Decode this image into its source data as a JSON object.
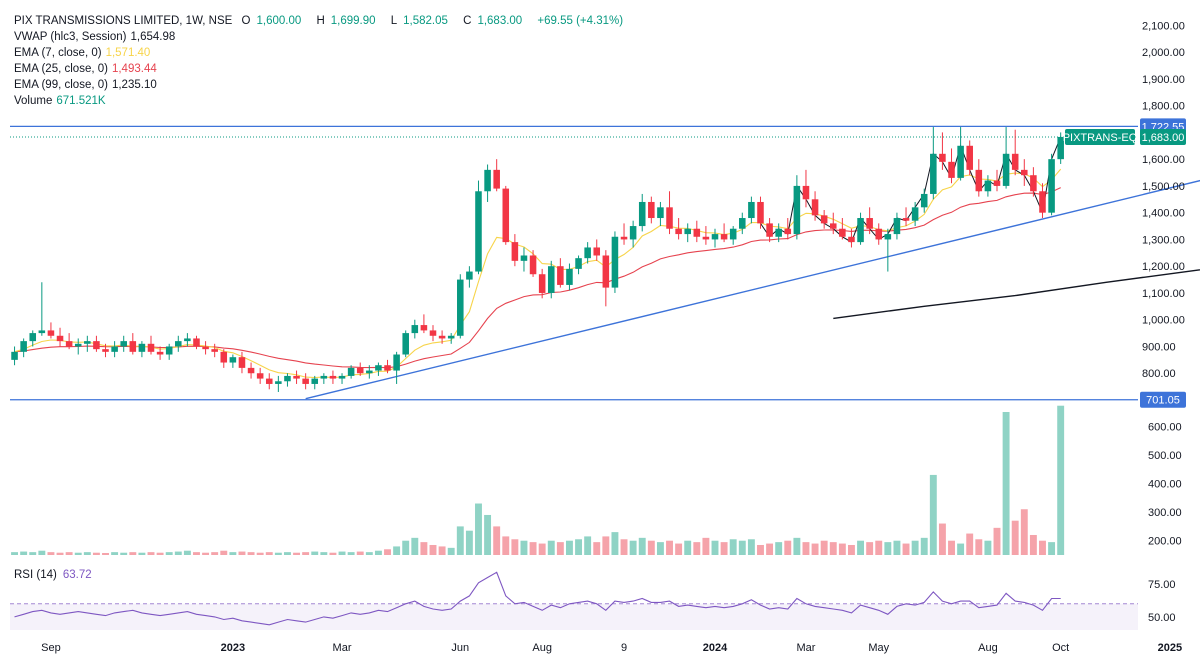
{
  "header": {
    "symbol": "PIX TRANSMISSIONS LIMITED, 1W, NSE",
    "open_label": "O",
    "open": "1,600.00",
    "high_label": "H",
    "high": "1,699.90",
    "low_label": "L",
    "low": "1,582.05",
    "close_label": "C",
    "close": "1,683.00",
    "change": "+69.55 (+4.31%)"
  },
  "indicators": [
    {
      "label": "VWAP (hlc3, Session)",
      "value": "1,654.98",
      "color": "#131722"
    },
    {
      "label": "EMA (7, close, 0)",
      "value": "1,571.40",
      "color": "#f7d44a"
    },
    {
      "label": "EMA (25, close, 0)",
      "value": "1,493.44",
      "color": "#e6434f"
    },
    {
      "label": "EMA (99, close, 0)",
      "value": "1,235.10",
      "color": "#131722"
    },
    {
      "label": "Volume",
      "value": "671.521K",
      "color": "#089981"
    }
  ],
  "rsi": {
    "label": "RSI (14)",
    "value": "63.72",
    "color": "#7e57c2"
  },
  "colors": {
    "up": "#089981",
    "down": "#f23645",
    "vol_up": "#8fd3c5",
    "vol_down": "#f5a3aa",
    "trend": "#3d73d9",
    "ema25": "#e6434f",
    "ema7": "#f7d44a",
    "rsi": "#7e57c2"
  },
  "chart_data": {
    "type": "candlestick",
    "interval": "1W",
    "price_axis": {
      "ticks": [
        2100,
        2000,
        1900,
        1800,
        1700,
        1600,
        1500,
        1400,
        1300,
        1200,
        1100,
        1000,
        900,
        800
      ],
      "tick_labels": [
        "2,100.00",
        "2,000.00",
        "1,900.00",
        "1,800.00",
        "1,700.00",
        "1,600.00",
        "1,500.00",
        "1,400.00",
        "1,300.00",
        "1,200.00",
        "1,100.00",
        "1,000.00",
        "900.00",
        "800.00"
      ],
      "range": [
        700,
        2120
      ]
    },
    "volume_axis": {
      "ticks": [
        600,
        500,
        400,
        300,
        200
      ],
      "tick_labels": [
        "600.00",
        "500.00",
        "400.00",
        "300.00",
        "200.00"
      ],
      "unit": "K"
    },
    "rsi_axis": {
      "ticks": [
        75,
        50
      ],
      "tick_labels": [
        "75.00",
        "50.00"
      ],
      "reference": 60
    },
    "time_axis": [
      "Sep",
      "2023",
      "Mar",
      "Jun",
      "Aug",
      "9",
      "2024",
      "Mar",
      "May",
      "Aug",
      "Oct",
      "2025"
    ],
    "badges": [
      {
        "text": "1,722.55",
        "value": 1722.55
      },
      {
        "text": "PIXTRANS-EQ",
        "value": 1683
      },
      {
        "text": "1,683.00",
        "value": 1683
      },
      {
        "text": "701.05",
        "value": 701.05
      }
    ],
    "horizontal_lines": [
      1722.55,
      701.05
    ],
    "trendline": {
      "from": {
        "week": 32,
        "price": 705
      },
      "to": {
        "week": 140,
        "price": 1600
      }
    },
    "ema99_tail": [
      {
        "week": 90,
        "price": 1005
      },
      {
        "week": 100,
        "price": 1050
      },
      {
        "week": 110,
        "price": 1090
      },
      {
        "week": 120,
        "price": 1140
      },
      {
        "week": 130,
        "price": 1185
      },
      {
        "week": 140,
        "price": 1235
      }
    ],
    "candles": [
      [
        850,
        900,
        830,
        880
      ],
      [
        880,
        930,
        860,
        920
      ],
      [
        920,
        960,
        900,
        950
      ],
      [
        950,
        1140,
        940,
        960
      ],
      [
        960,
        990,
        930,
        940
      ],
      [
        940,
        970,
        900,
        920
      ],
      [
        920,
        950,
        890,
        900
      ],
      [
        900,
        930,
        870,
        910
      ],
      [
        910,
        940,
        880,
        920
      ],
      [
        920,
        940,
        880,
        890
      ],
      [
        890,
        910,
        860,
        880
      ],
      [
        880,
        920,
        860,
        900
      ],
      [
        900,
        940,
        880,
        920
      ],
      [
        920,
        950,
        870,
        880
      ],
      [
        880,
        920,
        860,
        910
      ],
      [
        910,
        940,
        870,
        880
      ],
      [
        880,
        900,
        850,
        870
      ],
      [
        870,
        910,
        850,
        900
      ],
      [
        900,
        940,
        880,
        920
      ],
      [
        920,
        950,
        900,
        930
      ],
      [
        930,
        940,
        890,
        900
      ],
      [
        900,
        920,
        870,
        890
      ],
      [
        890,
        910,
        860,
        880
      ],
      [
        880,
        890,
        820,
        840
      ],
      [
        840,
        870,
        820,
        860
      ],
      [
        860,
        880,
        800,
        820
      ],
      [
        820,
        840,
        780,
        800
      ],
      [
        800,
        820,
        760,
        780
      ],
      [
        780,
        800,
        740,
        760
      ],
      [
        760,
        790,
        730,
        770
      ],
      [
        770,
        800,
        750,
        790
      ],
      [
        790,
        810,
        760,
        780
      ],
      [
        780,
        800,
        740,
        760
      ],
      [
        760,
        790,
        740,
        780
      ],
      [
        780,
        800,
        760,
        790
      ],
      [
        790,
        810,
        760,
        780
      ],
      [
        780,
        800,
        760,
        790
      ],
      [
        790,
        830,
        780,
        820
      ],
      [
        820,
        840,
        790,
        800
      ],
      [
        800,
        830,
        780,
        810
      ],
      [
        810,
        840,
        790,
        830
      ],
      [
        830,
        850,
        800,
        810
      ],
      [
        810,
        880,
        760,
        870
      ],
      [
        870,
        960,
        860,
        950
      ],
      [
        950,
        1000,
        930,
        980
      ],
      [
        980,
        1020,
        950,
        960
      ],
      [
        960,
        980,
        920,
        940
      ],
      [
        940,
        960,
        910,
        930
      ],
      [
        930,
        950,
        910,
        940
      ],
      [
        940,
        1170,
        930,
        1150
      ],
      [
        1150,
        1200,
        1120,
        1180
      ],
      [
        1180,
        1520,
        1170,
        1480
      ],
      [
        1480,
        1580,
        1440,
        1560
      ],
      [
        1560,
        1600,
        1480,
        1490
      ],
      [
        1490,
        1500,
        1280,
        1290
      ],
      [
        1290,
        1320,
        1200,
        1220
      ],
      [
        1220,
        1270,
        1180,
        1240
      ],
      [
        1240,
        1260,
        1160,
        1170
      ],
      [
        1170,
        1190,
        1080,
        1100
      ],
      [
        1100,
        1220,
        1080,
        1200
      ],
      [
        1200,
        1230,
        1120,
        1130
      ],
      [
        1130,
        1210,
        1110,
        1190
      ],
      [
        1190,
        1240,
        1170,
        1230
      ],
      [
        1230,
        1290,
        1210,
        1270
      ],
      [
        1270,
        1300,
        1220,
        1240
      ],
      [
        1240,
        1260,
        1050,
        1120
      ],
      [
        1120,
        1330,
        1100,
        1310
      ],
      [
        1310,
        1360,
        1280,
        1300
      ],
      [
        1300,
        1370,
        1270,
        1350
      ],
      [
        1350,
        1470,
        1330,
        1440
      ],
      [
        1440,
        1460,
        1360,
        1380
      ],
      [
        1380,
        1440,
        1350,
        1420
      ],
      [
        1420,
        1480,
        1320,
        1340
      ],
      [
        1340,
        1380,
        1300,
        1320
      ],
      [
        1320,
        1360,
        1290,
        1340
      ],
      [
        1340,
        1370,
        1290,
        1310
      ],
      [
        1310,
        1350,
        1280,
        1300
      ],
      [
        1300,
        1340,
        1270,
        1320
      ],
      [
        1320,
        1360,
        1290,
        1300
      ],
      [
        1300,
        1350,
        1280,
        1340
      ],
      [
        1340,
        1400,
        1320,
        1380
      ],
      [
        1380,
        1460,
        1360,
        1440
      ],
      [
        1440,
        1460,
        1340,
        1360
      ],
      [
        1360,
        1380,
        1290,
        1310
      ],
      [
        1310,
        1360,
        1290,
        1340
      ],
      [
        1340,
        1380,
        1300,
        1320
      ],
      [
        1320,
        1540,
        1300,
        1500
      ],
      [
        1500,
        1560,
        1420,
        1450
      ],
      [
        1450,
        1480,
        1370,
        1390
      ],
      [
        1390,
        1410,
        1340,
        1360
      ],
      [
        1360,
        1400,
        1320,
        1340
      ],
      [
        1340,
        1380,
        1300,
        1310
      ],
      [
        1310,
        1340,
        1270,
        1290
      ],
      [
        1290,
        1400,
        1280,
        1380
      ],
      [
        1380,
        1420,
        1320,
        1340
      ],
      [
        1340,
        1360,
        1280,
        1300
      ],
      [
        1300,
        1340,
        1180,
        1320
      ],
      [
        1320,
        1400,
        1300,
        1380
      ],
      [
        1380,
        1420,
        1350,
        1370
      ],
      [
        1370,
        1440,
        1350,
        1420
      ],
      [
        1420,
        1490,
        1400,
        1470
      ],
      [
        1470,
        1720,
        1450,
        1620
      ],
      [
        1620,
        1700,
        1560,
        1590
      ],
      [
        1590,
        1640,
        1510,
        1530
      ],
      [
        1530,
        1720,
        1520,
        1650
      ],
      [
        1650,
        1670,
        1540,
        1560
      ],
      [
        1560,
        1600,
        1460,
        1480
      ],
      [
        1480,
        1540,
        1460,
        1520
      ],
      [
        1520,
        1560,
        1480,
        1500
      ],
      [
        1500,
        1720,
        1490,
        1620
      ],
      [
        1620,
        1710,
        1540,
        1560
      ],
      [
        1560,
        1600,
        1500,
        1540
      ],
      [
        1540,
        1570,
        1460,
        1480
      ],
      [
        1480,
        1510,
        1380,
        1400
      ],
      [
        1400,
        1620,
        1390,
        1600
      ],
      [
        1600,
        1699.9,
        1582.05,
        1683
      ]
    ],
    "volume_K": [
      160,
      162,
      160,
      165,
      160,
      158,
      160,
      158,
      160,
      158,
      157,
      160,
      158,
      160,
      158,
      160,
      158,
      160,
      162,
      165,
      160,
      158,
      160,
      165,
      160,
      162,
      160,
      158,
      160,
      158,
      160,
      158,
      160,
      162,
      160,
      158,
      162,
      160,
      162,
      160,
      165,
      170,
      180,
      200,
      210,
      195,
      185,
      180,
      175,
      250,
      235,
      330,
      290,
      250,
      215,
      205,
      200,
      195,
      190,
      200,
      195,
      200,
      205,
      215,
      195,
      215,
      230,
      205,
      200,
      210,
      200,
      195,
      200,
      190,
      200,
      195,
      210,
      200,
      195,
      205,
      200,
      205,
      185,
      190,
      195,
      200,
      210,
      195,
      190,
      200,
      195,
      190,
      185,
      200,
      195,
      200,
      195,
      200,
      190,
      200,
      210,
      430,
      260,
      200,
      190,
      225,
      205,
      200,
      245,
      650,
      270,
      310,
      220,
      200,
      195,
      672
    ],
    "rsi": [
      50,
      52,
      54,
      55,
      53,
      52,
      53,
      54,
      53,
      52,
      51,
      53,
      54,
      55,
      53,
      52,
      51,
      52,
      53,
      54,
      52,
      51,
      50,
      48,
      49,
      47,
      46,
      45,
      44,
      46,
      48,
      47,
      46,
      48,
      50,
      49,
      51,
      53,
      52,
      53,
      55,
      54,
      57,
      60,
      62,
      58,
      56,
      55,
      56,
      62,
      66,
      76,
      80,
      84,
      66,
      60,
      61,
      58,
      55,
      59,
      57,
      60,
      61,
      62,
      60,
      55,
      62,
      61,
      62,
      64,
      61,
      61,
      62,
      58,
      59,
      58,
      57,
      58,
      57,
      58,
      60,
      63,
      59,
      56,
      57,
      56,
      64,
      60,
      58,
      57,
      56,
      55,
      53,
      59,
      57,
      55,
      52,
      58,
      60,
      59,
      61,
      69,
      62,
      60,
      62,
      62,
      57,
      58,
      59,
      68,
      62,
      61,
      59,
      55,
      64,
      64
    ]
  }
}
